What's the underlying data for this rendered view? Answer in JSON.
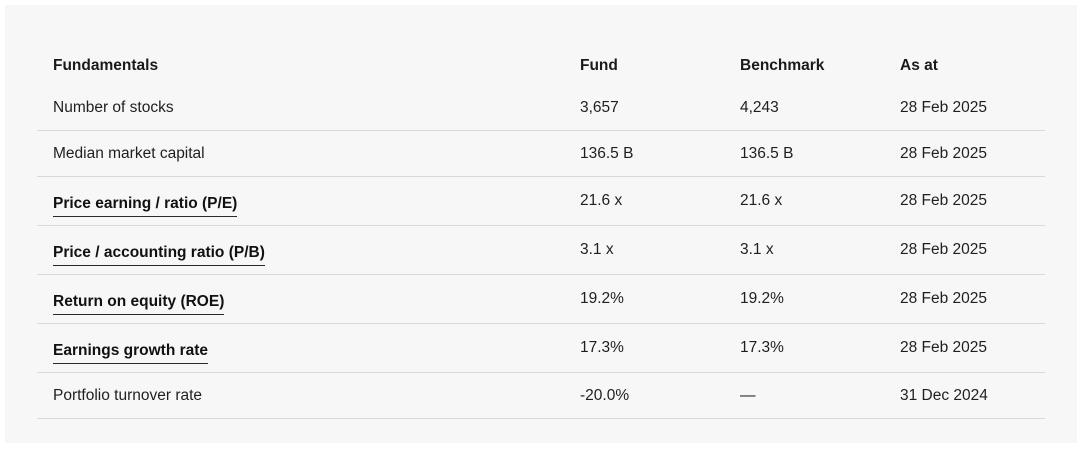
{
  "table": {
    "headers": {
      "metric": "Fundamentals",
      "fund": "Fund",
      "benchmark": "Benchmark",
      "as_at": "As at"
    },
    "rows": [
      {
        "metric": "Number of stocks",
        "fund": "3,657",
        "benchmark": "4,243",
        "as_at": "28 Feb 2025",
        "is_link": false
      },
      {
        "metric": "Median market capital",
        "fund": "136.5 B",
        "benchmark": "136.5 B",
        "as_at": "28 Feb 2025",
        "is_link": false
      },
      {
        "metric": "Price earning / ratio (P/E)",
        "fund": "21.6 x",
        "benchmark": "21.6 x",
        "as_at": "28 Feb 2025",
        "is_link": true
      },
      {
        "metric": "Price / accounting ratio (P/B)",
        "fund": "3.1 x",
        "benchmark": "3.1 x",
        "as_at": "28 Feb 2025",
        "is_link": true
      },
      {
        "metric": "Return on equity (ROE)",
        "fund": "19.2%",
        "benchmark": "19.2%",
        "as_at": "28 Feb 2025",
        "is_link": true
      },
      {
        "metric": "Earnings growth rate",
        "fund": "17.3%",
        "benchmark": "17.3%",
        "as_at": "28 Feb 2025",
        "is_link": true
      },
      {
        "metric": "Portfolio turnover rate",
        "fund": "-20.0%",
        "benchmark": "—",
        "as_at": "31 Dec 2024",
        "is_link": false
      }
    ]
  }
}
